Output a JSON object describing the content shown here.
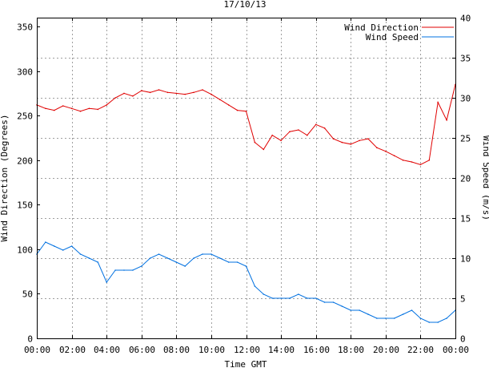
{
  "chart_data": {
    "type": "line",
    "title": "17/10/13",
    "xlabel": "Time GMT",
    "ylabel_left": "Wind Direction (Degrees)",
    "ylabel_right": "Wind Speed (m/s)",
    "x_ticks": [
      "00:00",
      "02:00",
      "04:00",
      "06:00",
      "08:00",
      "10:00",
      "12:00",
      "14:00",
      "16:00",
      "18:00",
      "20:00",
      "22:00",
      "00:00"
    ],
    "x_range_hours": [
      0,
      24
    ],
    "ylim_left": [
      0,
      360
    ],
    "yticks_left": [
      0,
      50,
      100,
      150,
      200,
      250,
      300,
      350
    ],
    "ylim_right": [
      0,
      40
    ],
    "yticks_right": [
      0,
      5,
      10,
      15,
      20,
      25,
      30,
      35,
      40
    ],
    "grid": true,
    "legend_position": "top-right",
    "series": [
      {
        "name": "Wind Direction",
        "axis": "left",
        "color": "#e00000",
        "x_hours": [
          0,
          0.5,
          1,
          1.5,
          2,
          2.5,
          3,
          3.5,
          4,
          4.5,
          5,
          5.5,
          6,
          6.5,
          7,
          7.5,
          8,
          8.5,
          9,
          9.5,
          10,
          10.5,
          11,
          11.5,
          12,
          12.5,
          13,
          13.5,
          14,
          14.5,
          15,
          15.5,
          16,
          16.5,
          17,
          17.5,
          18,
          18.5,
          19,
          19.5,
          20,
          20.5,
          21,
          21.5,
          22,
          22.5,
          23,
          23.5,
          24
        ],
        "values": [
          262,
          258,
          256,
          261,
          258,
          255,
          258,
          257,
          262,
          270,
          275,
          272,
          278,
          276,
          279,
          276,
          275,
          274,
          276,
          279,
          274,
          268,
          262,
          256,
          255,
          220,
          212,
          228,
          222,
          232,
          234,
          228,
          240,
          236,
          224,
          220,
          218,
          222,
          224,
          214,
          210,
          205,
          200,
          198,
          195,
          200,
          265,
          245,
          285
        ]
      },
      {
        "name": "Wind Speed",
        "axis": "right",
        "color": "#0070e0",
        "x_hours": [
          0,
          0.5,
          1,
          1.5,
          2,
          2.5,
          3,
          3.5,
          4,
          4.5,
          5,
          5.5,
          6,
          6.5,
          7,
          7.5,
          8,
          8.5,
          9,
          9.5,
          10,
          10.5,
          11,
          11.5,
          12,
          12.5,
          13,
          13.5,
          14,
          14.5,
          15,
          15.5,
          16,
          16.5,
          17,
          17.5,
          18,
          18.5,
          19,
          19.5,
          20,
          20.5,
          21,
          21.5,
          22,
          22.5,
          23,
          23.5,
          24
        ],
        "values": [
          10.5,
          12,
          11.5,
          11,
          11.5,
          10.5,
          10,
          9.5,
          7,
          8.5,
          8.5,
          8.5,
          9,
          10,
          10.5,
          10,
          9.5,
          9,
          10,
          10.5,
          10.5,
          10,
          9.5,
          9.5,
          9,
          6.5,
          5.5,
          5,
          5,
          5,
          5.5,
          5,
          5,
          4.5,
          4.5,
          4,
          3.5,
          3.5,
          3,
          2.5,
          2.5,
          2.5,
          3,
          3.5,
          2.5,
          2,
          2,
          2.5,
          3.5
        ]
      }
    ]
  }
}
